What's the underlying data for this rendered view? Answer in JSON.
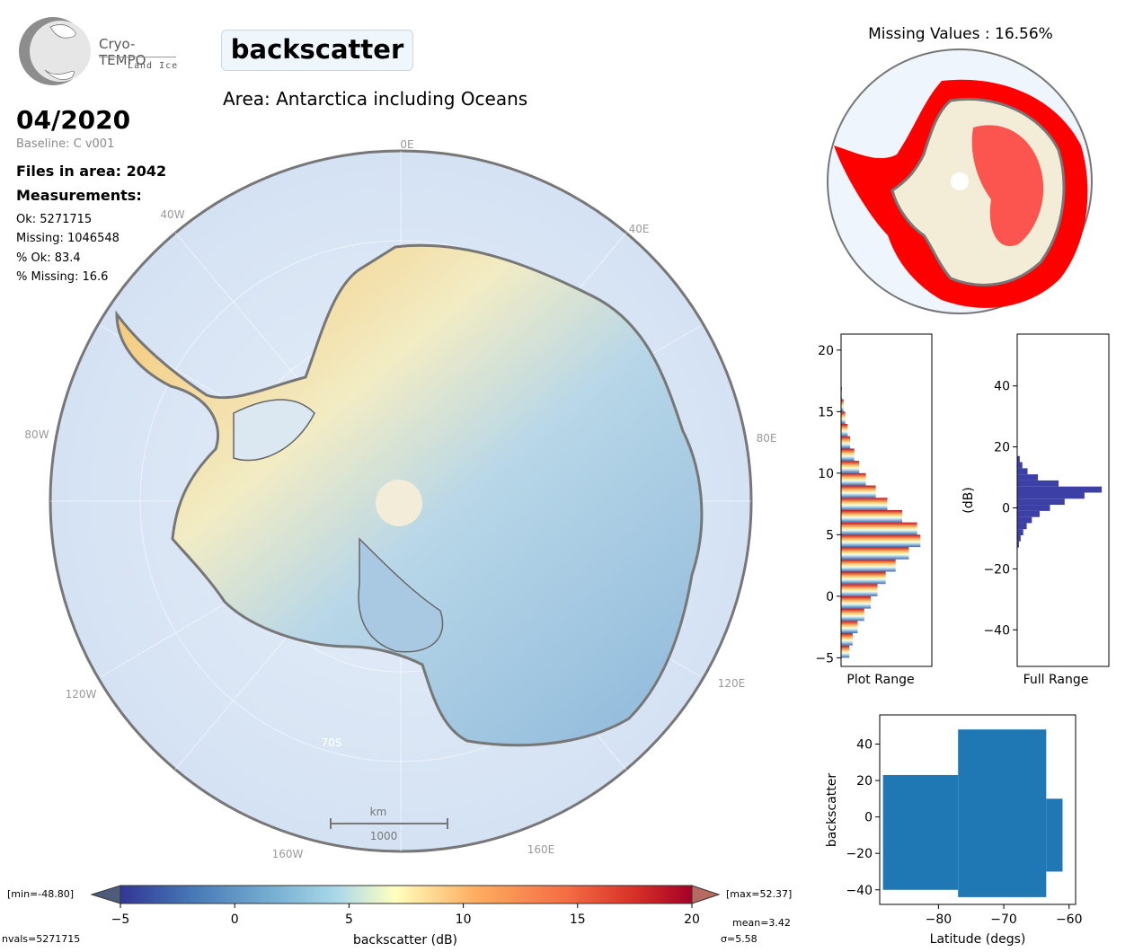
{
  "logo": {
    "name": "Cryo-TEMPO",
    "sub": "Land Ice"
  },
  "header": {
    "parameter": "backscatter",
    "area": "Area: Antarctica including Oceans",
    "date": "04/2020",
    "baseline": "Baseline: C v001",
    "files": "Files in area: 2042",
    "measurements_label": "Measurements:"
  },
  "stats": {
    "ok": "Ok: 5271715",
    "missing": "Missing: 1046548",
    "pct_ok": "% Ok: 83.4",
    "pct_missing": "% Missing: 16.6"
  },
  "map": {
    "lon_labels": [
      "0E",
      "40E",
      "80E",
      "120E",
      "160E",
      "160W",
      "120W",
      "80W",
      "40W"
    ],
    "lat_label": "70S",
    "scalebar_unit": "km",
    "scalebar_value": "1000"
  },
  "missing_map": {
    "title": "Missing Values : 16.56%"
  },
  "colorbar": {
    "min_label": "[min=-48.80]",
    "max_label": "[max=52.37]",
    "ticks": [
      "−5",
      "0",
      "5",
      "10",
      "15",
      "20"
    ],
    "label": "backscatter (dB)",
    "nvals": "nvals=5271715",
    "mean": "mean=3.42",
    "sigma": "σ=5.58"
  },
  "chart_data": [
    {
      "type": "histogram",
      "title": "",
      "xlabel": "Plot Range",
      "ylabel": "",
      "ylim": [
        -5.7,
        21.3
      ],
      "y_ticks": [
        "−5",
        "0",
        "5",
        "10",
        "15",
        "20"
      ],
      "bins": [
        -5.0,
        -4.0,
        -3.0,
        -2.0,
        -1.0,
        0.0,
        1.0,
        2.0,
        3.0,
        4.0,
        5.0,
        6.0,
        7.0,
        8.0,
        9.0,
        10.0,
        11.0,
        12.0,
        13.0,
        14.0,
        15.0,
        16.0
      ],
      "counts": [
        0.1,
        0.14,
        0.2,
        0.28,
        0.36,
        0.44,
        0.54,
        0.66,
        0.82,
        0.96,
        0.92,
        0.74,
        0.56,
        0.42,
        0.3,
        0.22,
        0.16,
        0.11,
        0.08,
        0.05,
        0.03,
        0.01
      ]
    },
    {
      "type": "histogram",
      "title": "",
      "xlabel": "Full Range",
      "ylabel": "(dB)",
      "ylim": [
        -52,
        57
      ],
      "y_ticks": [
        "−40",
        "−20",
        "0",
        "20",
        "40"
      ],
      "bins": [
        -13,
        -11,
        -9,
        -7,
        -5,
        -3,
        -1,
        1,
        3,
        5,
        7,
        9,
        11,
        13,
        15
      ],
      "counts": [
        0.02,
        0.04,
        0.07,
        0.11,
        0.17,
        0.26,
        0.38,
        0.55,
        0.78,
        0.98,
        0.48,
        0.24,
        0.12,
        0.06,
        0.03
      ]
    },
    {
      "type": "scatter",
      "title": "",
      "xlabel": "Latitude (degs)",
      "ylabel": "backscatter",
      "xlim": [
        -89,
        -59
      ],
      "ylim": [
        -48,
        56
      ],
      "x_ticks": [
        "−80",
        "−70",
        "−60"
      ],
      "y_ticks": [
        "−40",
        "−20",
        "0",
        "20",
        "40"
      ],
      "envelope": [
        {
          "lat_from": -88.5,
          "lat_to": -77.0,
          "y_min": -40,
          "y_max": 23
        },
        {
          "lat_from": -77.0,
          "lat_to": -63.5,
          "y_min": -44,
          "y_max": 48
        },
        {
          "lat_from": -63.5,
          "lat_to": -61.0,
          "y_min": -30,
          "y_max": 10
        }
      ]
    }
  ]
}
